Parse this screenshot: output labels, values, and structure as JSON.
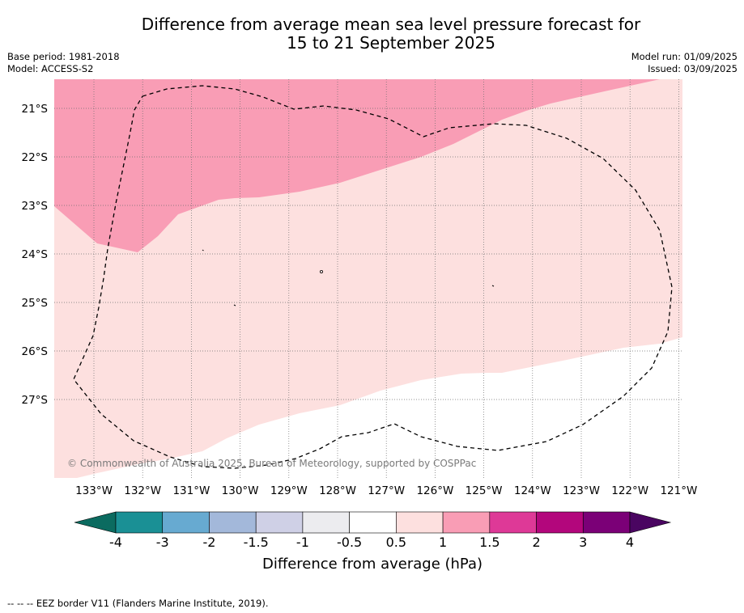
{
  "title": {
    "line1": "Difference from average mean sea level pressure forecast for",
    "line2": "15 to 21 September 2025"
  },
  "meta": {
    "base_period": "Base period: 1981-2018",
    "model": "Model: ACCESS-S2",
    "model_run": "Model run: 01/09/2025",
    "issued": "Issued: 03/09/2025"
  },
  "map": {
    "lat_labels": [
      "21°S",
      "22°S",
      "23°S",
      "24°S",
      "25°S",
      "26°S",
      "27°S"
    ],
    "lon_labels": [
      "133°W",
      "132°W",
      "131°W",
      "130°W",
      "129°W",
      "128°W",
      "127°W",
      "126°W",
      "125°W",
      "124°W",
      "123°W",
      "122°W",
      "121°W"
    ],
    "fill_colors": {
      "band_1_to_1_5": "#f99db5",
      "band_0_5_to_1": "#fde0df",
      "band_minus_0_5_to_0_5": "#ffffff"
    },
    "copyright": "© Commonwealth of Australia 2025, Bureau of Meteorology, supported by COSPPac"
  },
  "colorbar": {
    "title": "Difference from average (hPa)",
    "tick_labels": [
      "-4",
      "-3",
      "-2",
      "-1.5",
      "-1",
      "-0.5",
      "0.5",
      "1",
      "1.5",
      "2",
      "3",
      "4"
    ],
    "under_color": "#0b6b60",
    "over_color": "#4a0561",
    "colors": [
      "#1a9095",
      "#67aad1",
      "#a3b8da",
      "#cfd0e6",
      "#ececef",
      "#ffffff",
      "#fde0df",
      "#f99db5",
      "#de3997",
      "#b3067c",
      "#7b0077"
    ]
  },
  "footnote": "--  --  -- EEZ border V11 (Flanders Marine Institute, 2019)."
}
